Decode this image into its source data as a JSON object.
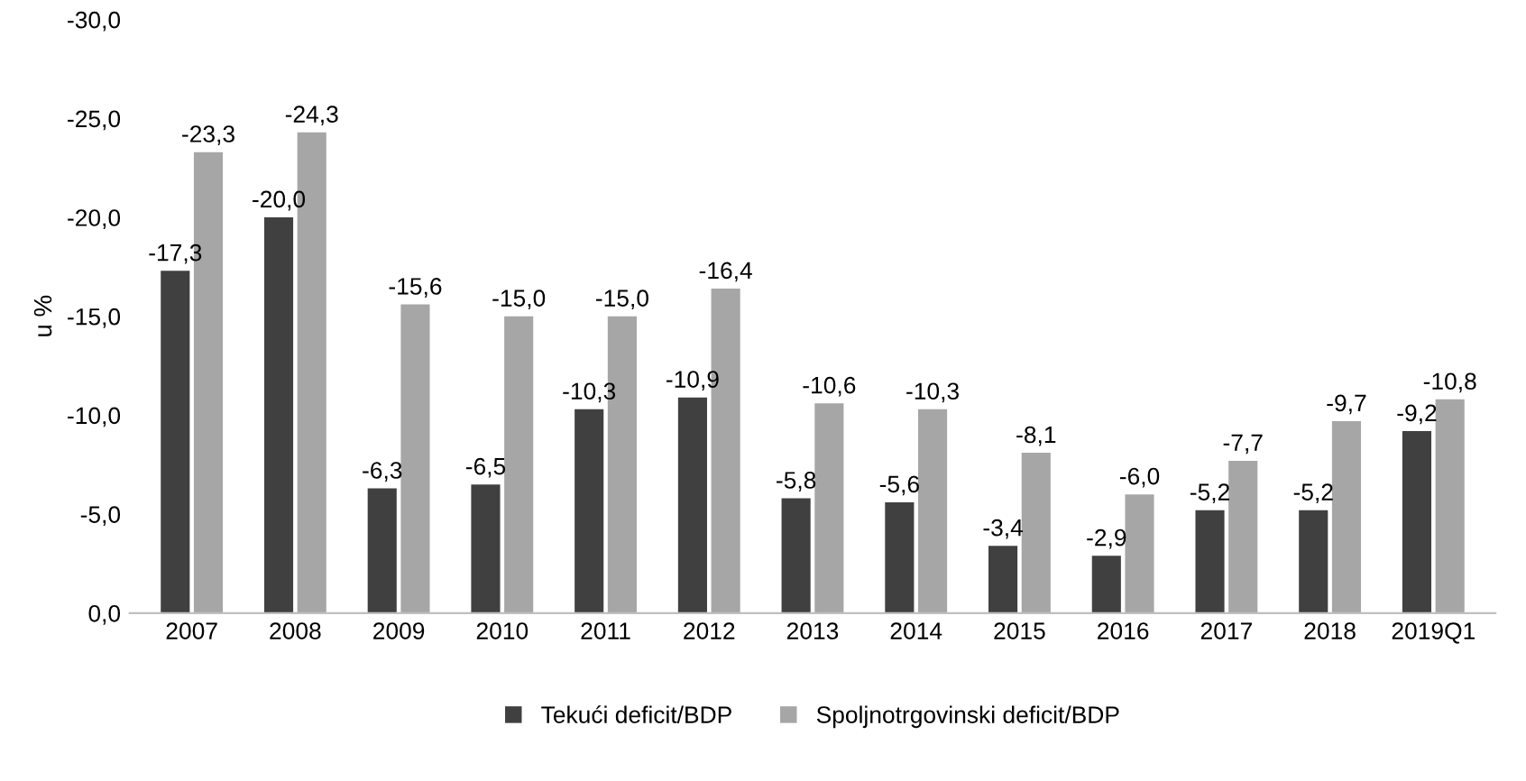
{
  "chart_data": {
    "type": "bar",
    "categories": [
      "2007",
      "2008",
      "2009",
      "2010",
      "2011",
      "2012",
      "2013",
      "2014",
      "2015",
      "2016",
      "2017",
      "2018",
      "2019Q1"
    ],
    "ylabel": "u %",
    "ylim": [
      0,
      -30
    ],
    "yticks": [
      {
        "value": 0,
        "label": "0,0"
      },
      {
        "value": -5,
        "label": "-5,0"
      },
      {
        "value": -10,
        "label": "-10,0"
      },
      {
        "value": -15,
        "label": "-15,0"
      },
      {
        "value": -20,
        "label": "-20,0"
      },
      {
        "value": -25,
        "label": "-25,0"
      },
      {
        "value": -30,
        "label": "-30,0"
      }
    ],
    "series": [
      {
        "name": "Tekući deficit/BDP",
        "color": "#404040",
        "values": [
          -17.3,
          -20.0,
          -6.3,
          -6.5,
          -10.3,
          -10.9,
          -5.8,
          -5.6,
          -3.4,
          -2.9,
          -5.2,
          -5.2,
          -9.2
        ],
        "value_labels": [
          "-17,3",
          "-20,0",
          "-6,3",
          "-6,5",
          "-10,3",
          "-10,9",
          "-5,8",
          "-5,6",
          "-3,4",
          "-2,9",
          "-5,2",
          "-5,2",
          "-9,2"
        ]
      },
      {
        "name": "Spoljnotrgovinski deficit/BDP",
        "color": "#a6a6a6",
        "values": [
          -23.3,
          -24.3,
          -15.6,
          -15.0,
          -15.0,
          -16.4,
          -10.6,
          -10.3,
          -8.1,
          -6.0,
          -7.7,
          -9.7,
          -10.8
        ],
        "value_labels": [
          "-23,3",
          "-24,3",
          "-15,6",
          "-15,0",
          "-15,0",
          "-16,4",
          "-10,6",
          "-10,3",
          "-8,1",
          "-6,0",
          "-7,7",
          "-9,7",
          "-10,8"
        ]
      }
    ],
    "legend": "bottom",
    "grid": false
  }
}
